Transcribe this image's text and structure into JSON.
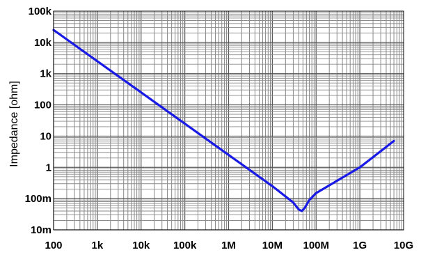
{
  "chart_data": {
    "type": "line",
    "title": "",
    "xlabel": "",
    "ylabel": "Impedance [ohm]",
    "x_scale": "log",
    "y_scale": "log",
    "xlim": [
      100,
      10000000000
    ],
    "ylim": [
      0.01,
      100000
    ],
    "grid": true,
    "legend": "none",
    "x_tick_values": [
      100,
      1000,
      10000,
      100000,
      1000000,
      10000000,
      100000000,
      1000000000,
      10000000000
    ],
    "x_tick_labels": [
      "100",
      "1k",
      "10k",
      "100k",
      "1M",
      "10M",
      "100M",
      "1G",
      "10G"
    ],
    "y_tick_values": [
      0.01,
      0.1,
      1,
      10,
      100,
      1000,
      10000,
      100000
    ],
    "y_tick_labels": [
      "10m",
      "100m",
      "1",
      "10",
      "100",
      "1k",
      "10k",
      "100k"
    ],
    "series": [
      {
        "color": "#1a1ae6",
        "x": [
          100,
          1000,
          10000,
          100000,
          1000000,
          10000000,
          30000000,
          40000000,
          47000000,
          55000000,
          70000000,
          100000000,
          1000000000,
          6000000000
        ],
        "y": [
          25000,
          2500,
          250,
          25,
          2.5,
          0.25,
          0.075,
          0.045,
          0.04,
          0.05,
          0.09,
          0.15,
          1,
          7
        ]
      }
    ]
  }
}
